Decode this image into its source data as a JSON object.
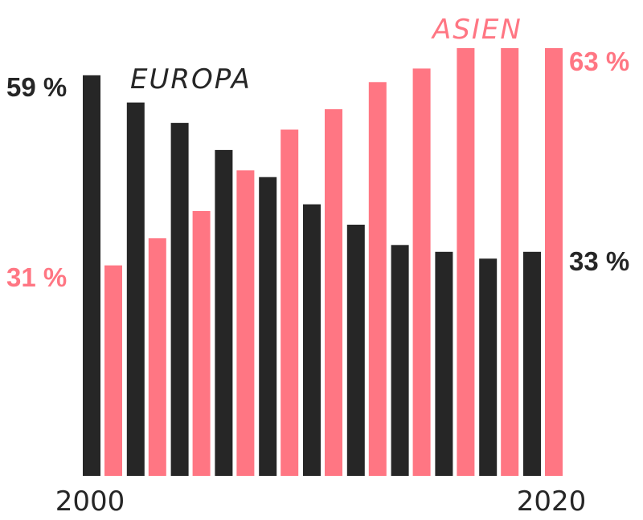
{
  "chart_data": {
    "type": "bar",
    "x_tick_labels": [
      "2000",
      "2020"
    ],
    "ylim": [
      0,
      63
    ],
    "grid": false,
    "series": [
      {
        "name": "EUROPA",
        "color": "#262626",
        "values": [
          59,
          55,
          52,
          48,
          44,
          40,
          37,
          34,
          33,
          32,
          33
        ],
        "start_label": "59 %",
        "end_label": "33 %"
      },
      {
        "name": "ASIEN",
        "color": "#ff7683",
        "values": [
          31,
          35,
          39,
          45,
          51,
          54,
          58,
          60,
          63,
          63,
          63
        ],
        "start_label": "31 %",
        "end_label": "63 %"
      }
    ]
  }
}
